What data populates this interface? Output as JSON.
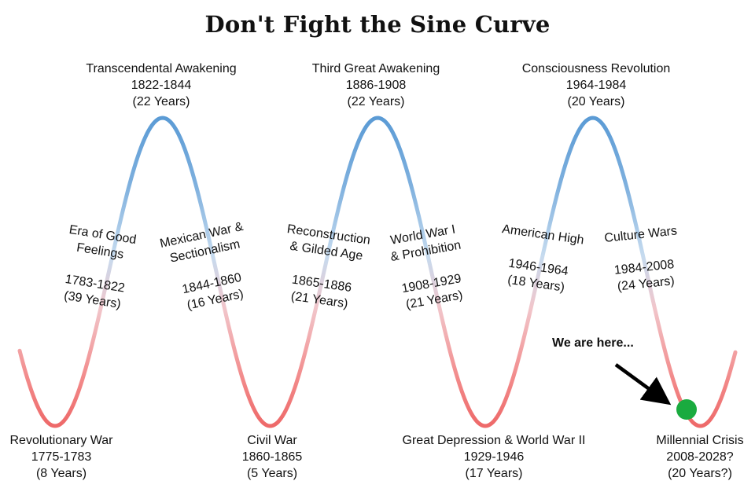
{
  "title": "Don't Fight the Sine Curve",
  "colors": {
    "crest": "#5b9bd5",
    "trough": "#f07070",
    "marker": "#1aab3f",
    "arrow": "#000000"
  },
  "peaks": [
    {
      "name": "Transcendental Awakening",
      "years": "1822-1844",
      "duration": "(22 Years)"
    },
    {
      "name": "Third Great Awakening",
      "years": "1886-1908",
      "duration": "(22 Years)"
    },
    {
      "name": "Consciousness Revolution",
      "years": "1964-1984",
      "duration": "(20 Years)"
    }
  ],
  "troughs": [
    {
      "name": "Revolutionary War",
      "years": "1775-1783",
      "duration": "(8 Years)"
    },
    {
      "name": "Civil War",
      "years": "1860-1865",
      "duration": "(5 Years)"
    },
    {
      "name": "Great Depression & World War II",
      "years": "1929-1946",
      "duration": "(17 Years)"
    },
    {
      "name": "Millennial  Crisis",
      "years": "2008-2028?",
      "duration": "(20 Years?)"
    }
  ],
  "transitions": [
    {
      "name1": "Era of Good",
      "name2": "Feelings",
      "years": "1783-1822",
      "duration": "(39 Years)"
    },
    {
      "name1": "Mexican War &",
      "name2": "Sectionalism",
      "years": "1844-1860",
      "duration": "(16 Years)"
    },
    {
      "name1": "Reconstruction",
      "name2": "& Gilded Age",
      "years": "1865-1886",
      "duration": "(21 Years)"
    },
    {
      "name1": "World War I",
      "name2": "& Prohibition",
      "years": "1908-1929",
      "duration": "(21 Years)"
    },
    {
      "name1": "American High",
      "name2": "",
      "years": "1946-1964",
      "duration": "(18 Years)"
    },
    {
      "name1": "Culture Wars",
      "name2": "",
      "years": "1984-2008",
      "duration": "(24 Years)"
    }
  ],
  "marker_label": "We are here..."
}
